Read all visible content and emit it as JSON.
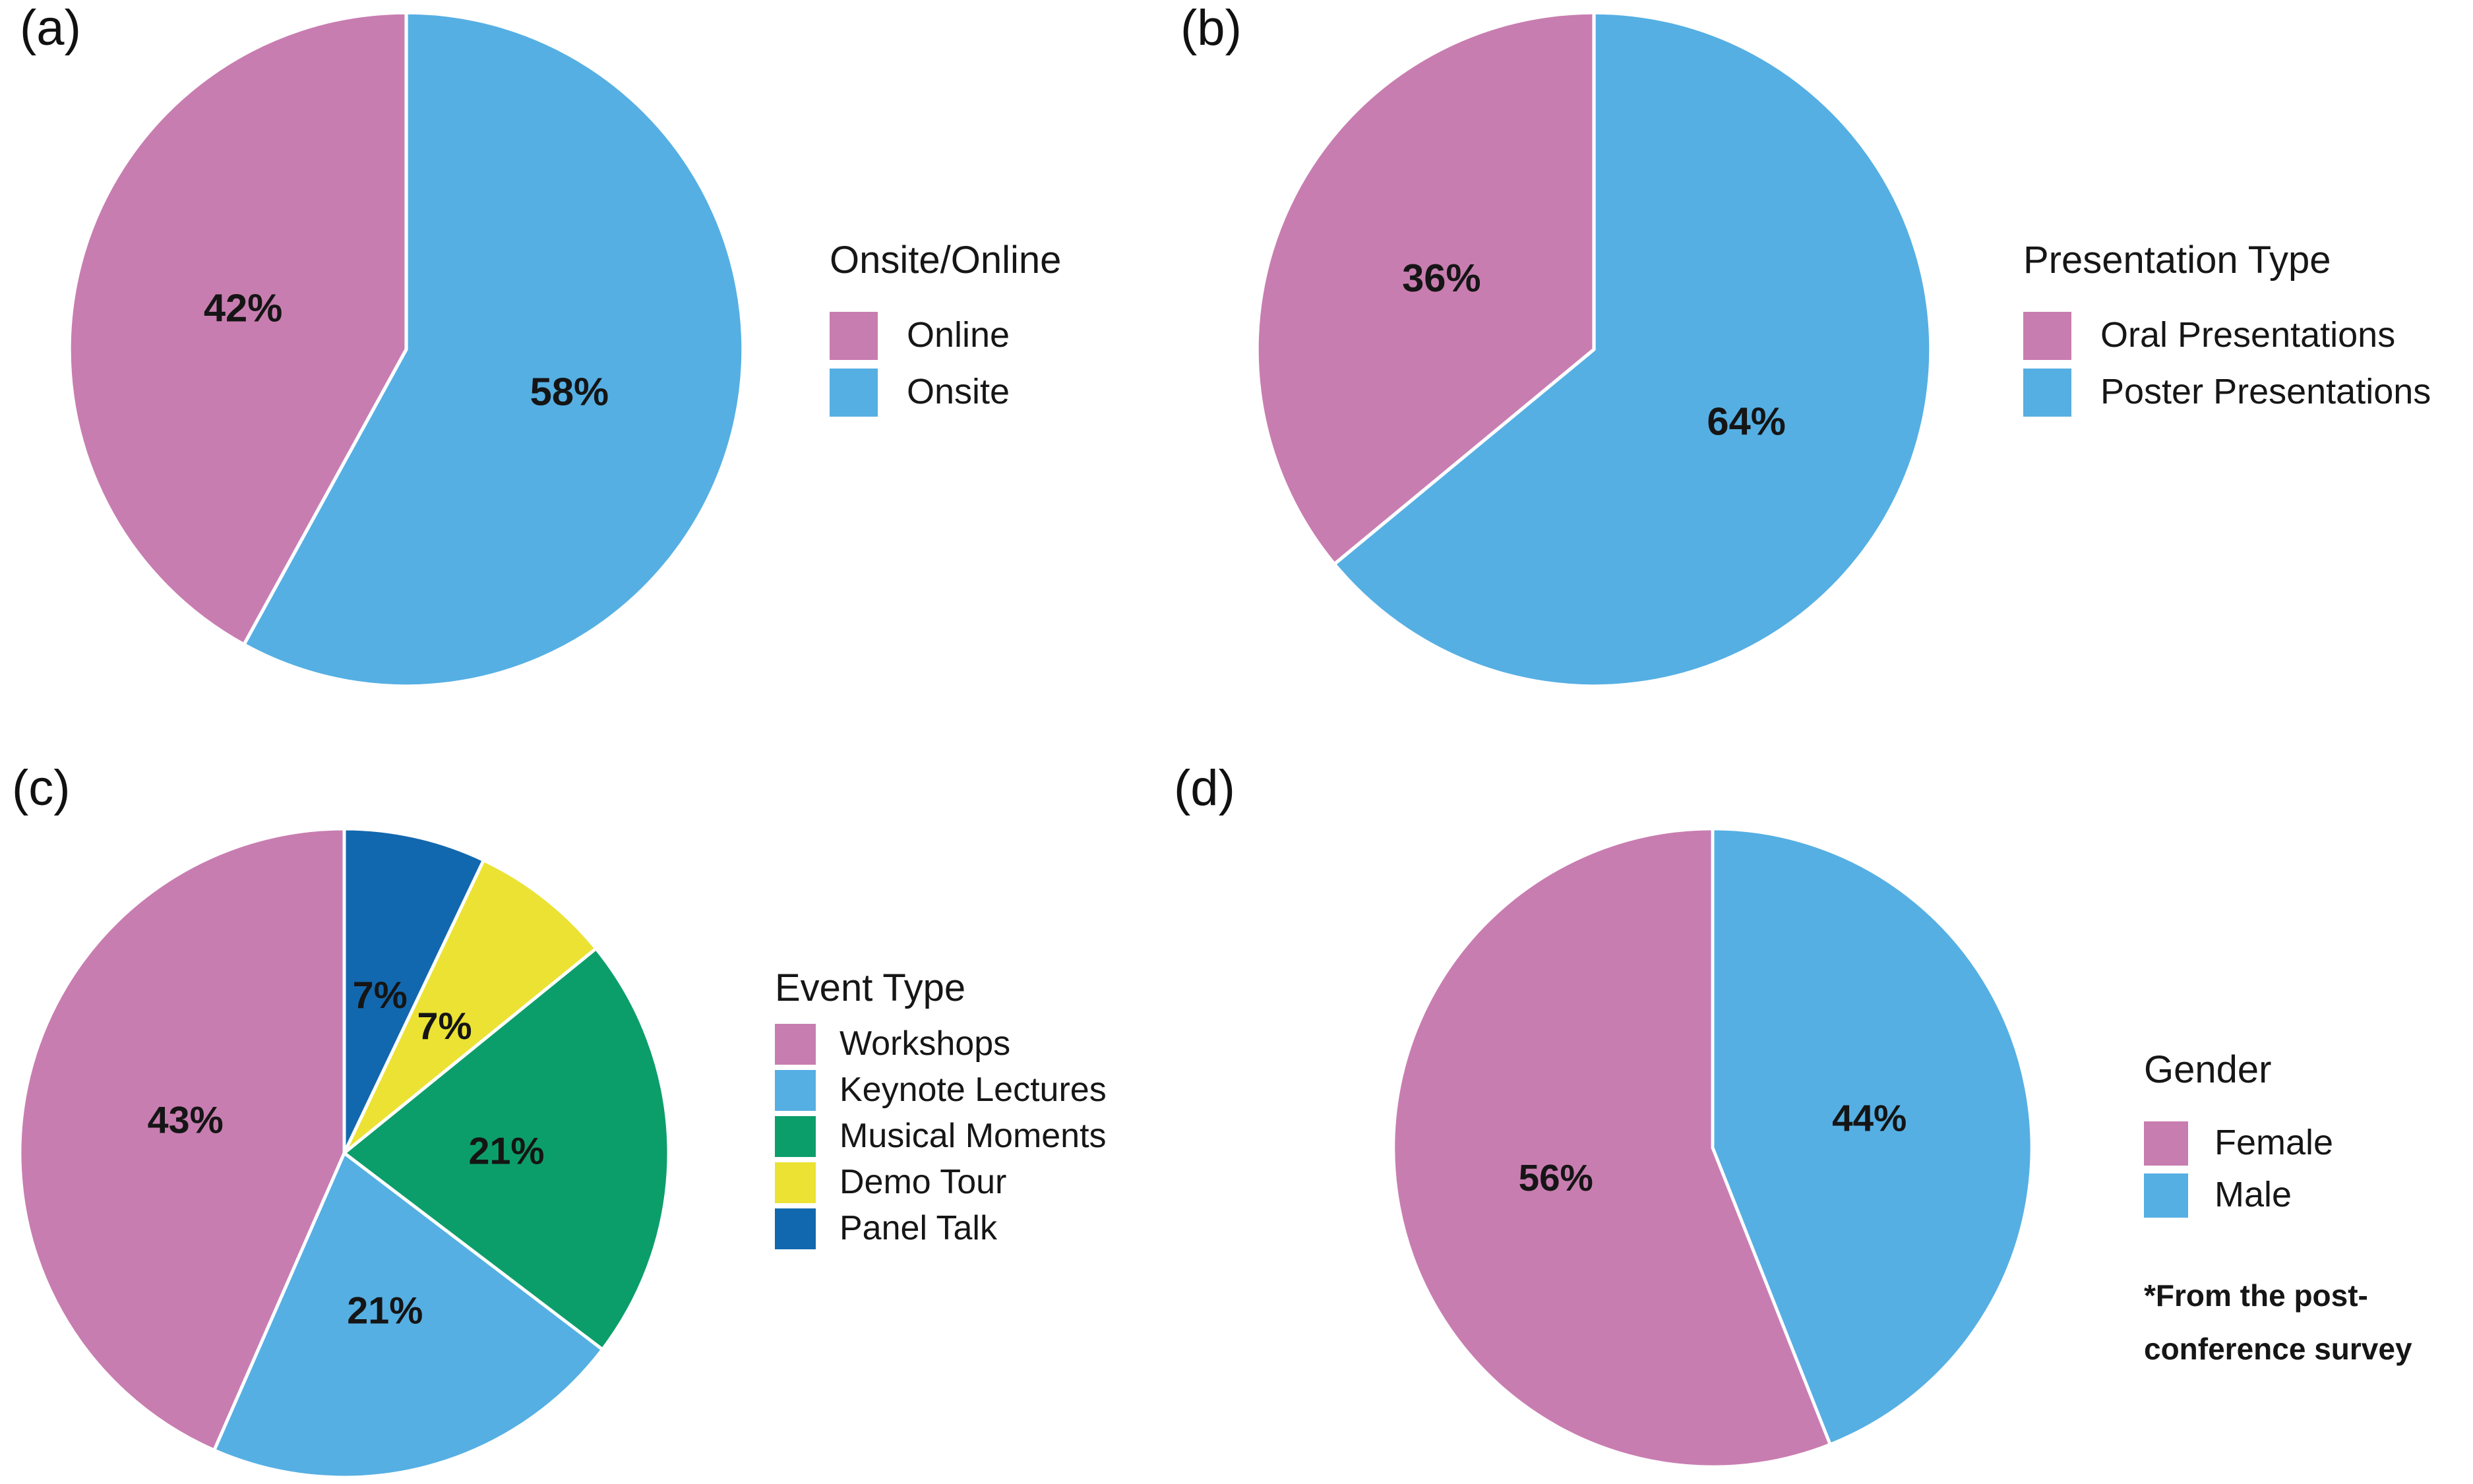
{
  "figure_background": "#ffffff",
  "separator_color": "#ffffff",
  "text_color": "#161616",
  "chart_data": [
    {
      "type": "pie",
      "panel_label": "(a)",
      "legend_title": "Onsite/Online",
      "legend_position": "right",
      "start_angle": "12-oclock",
      "draw_direction": "clockwise-reverse-of-legend-order",
      "slices": [
        {
          "label": "Online",
          "value": 42,
          "value_label": "42%",
          "color": "#C87DB0"
        },
        {
          "label": "Onsite",
          "value": 58,
          "value_label": "58%",
          "color": "#55AFE3"
        }
      ]
    },
    {
      "type": "pie",
      "panel_label": "(b)",
      "legend_title": "Presentation Type",
      "legend_position": "right",
      "start_angle": "12-oclock",
      "draw_direction": "clockwise-reverse-of-legend-order",
      "slices": [
        {
          "label": "Oral Presentations",
          "value": 36,
          "value_label": "36%",
          "color": "#C87DB0"
        },
        {
          "label": "Poster Presentations",
          "value": 64,
          "value_label": "64%",
          "color": "#55AFE3"
        }
      ]
    },
    {
      "type": "pie",
      "panel_label": "(c)",
      "legend_title": "Event Type",
      "legend_position": "right",
      "start_angle": "12-oclock",
      "draw_direction": "clockwise-reverse-of-legend-order",
      "slices": [
        {
          "label": "Workshops",
          "value": 43,
          "value_label": "43%",
          "color": "#C87DB0"
        },
        {
          "label": "Keynote Lectures",
          "value": 21,
          "value_label": "21%",
          "color": "#55AFE3"
        },
        {
          "label": "Musical Moments",
          "value": 21,
          "value_label": "21%",
          "color": "#0C9E6A"
        },
        {
          "label": "Demo Tour",
          "value": 7,
          "value_label": "7%",
          "color": "#EBE234"
        },
        {
          "label": "Panel Talk",
          "value": 7,
          "value_label": "7%",
          "color": "#1268AE"
        }
      ]
    },
    {
      "type": "pie",
      "panel_label": "(d)",
      "legend_title": "Gender",
      "legend_position": "right",
      "start_angle": "12-oclock",
      "draw_direction": "clockwise-reverse-of-legend-order",
      "footnote": "*From the post-conference survey",
      "slices": [
        {
          "label": "Female",
          "value": 56,
          "value_label": "56%",
          "color": "#C87DB0"
        },
        {
          "label": "Male",
          "value": 44,
          "value_label": "44%",
          "color": "#55AFE3"
        }
      ]
    }
  ]
}
